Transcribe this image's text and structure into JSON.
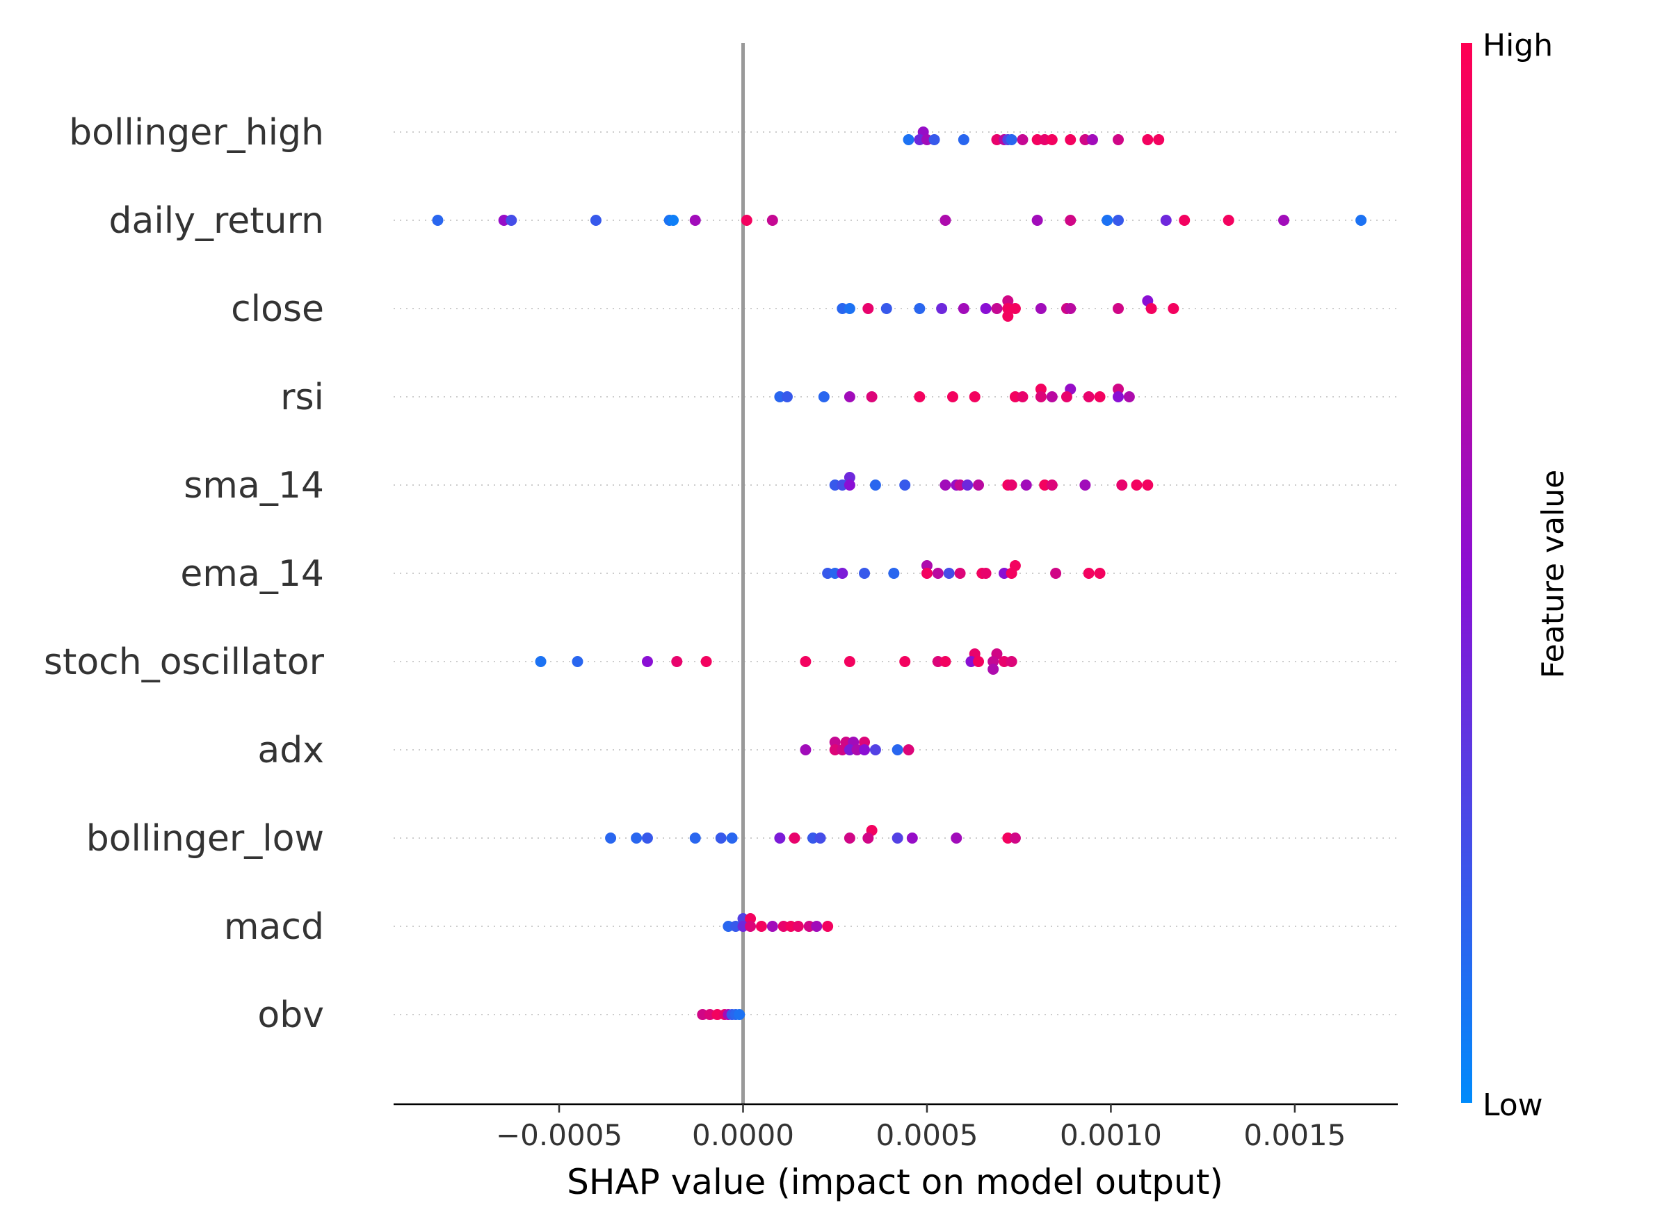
{
  "chart_data": {
    "type": "scatter",
    "subtype": "shap-beeswarm",
    "title": "",
    "xlabel": "SHAP value (impact on model output)",
    "ylabel": "",
    "xlim": [
      -0.00095,
      0.00178
    ],
    "xticks": [
      {
        "value": -0.0005,
        "label": "−0.0005"
      },
      {
        "value": 0.0,
        "label": "0.0000"
      },
      {
        "value": 0.0005,
        "label": "0.0005"
      },
      {
        "value": 0.001,
        "label": "0.0010"
      },
      {
        "value": 0.0015,
        "label": "0.0015"
      }
    ],
    "zero_line": 0.0,
    "grid": false,
    "colorbar": {
      "title": "Feature value",
      "high_label": "High",
      "low_label": "Low",
      "high_color": "#ff0052",
      "mid_color": "#8a0fd4",
      "low_color": "#008bfb"
    },
    "features": [
      {
        "name": "bollinger_high",
        "points": [
          [
            0.00049,
            0,
            0.55
          ],
          [
            0.00045,
            -1,
            0.1
          ],
          [
            0.00048,
            -1,
            0.4
          ],
          [
            0.0005,
            -1,
            0.6
          ],
          [
            0.00052,
            -1,
            0.2
          ],
          [
            0.0006,
            -1,
            0.15
          ],
          [
            0.00069,
            -1,
            0.9
          ],
          [
            0.00071,
            -1,
            0.7
          ],
          [
            0.00072,
            -1,
            0.3
          ],
          [
            0.00073,
            -1,
            0.15
          ],
          [
            0.00076,
            -1,
            0.75
          ],
          [
            0.0008,
            -1,
            0.95
          ],
          [
            0.00082,
            -1,
            0.9
          ],
          [
            0.00084,
            -1,
            0.95
          ],
          [
            0.00089,
            -1,
            0.95
          ],
          [
            0.00093,
            -1,
            0.8
          ],
          [
            0.00095,
            -1,
            0.6
          ],
          [
            0.00102,
            -1,
            0.8
          ],
          [
            0.0011,
            -1,
            0.95
          ],
          [
            0.00113,
            -1,
            0.95
          ]
        ]
      },
      {
        "name": "daily_return",
        "points": [
          [
            -0.00083,
            0,
            0.15
          ],
          [
            -0.00065,
            0,
            0.55
          ],
          [
            -0.00063,
            0,
            0.25
          ],
          [
            -0.0004,
            0,
            0.2
          ],
          [
            -0.0002,
            0,
            0.1
          ],
          [
            -0.00019,
            0,
            0.05
          ],
          [
            -0.00013,
            0,
            0.6
          ],
          [
            1e-05,
            0,
            0.95
          ],
          [
            8e-05,
            0,
            0.75
          ],
          [
            0.00055,
            0,
            0.65
          ],
          [
            0.0008,
            0,
            0.6
          ],
          [
            0.00089,
            0,
            0.8
          ],
          [
            0.00099,
            0,
            0.1
          ],
          [
            0.00102,
            0,
            0.2
          ],
          [
            0.00115,
            0,
            0.4
          ],
          [
            0.0012,
            0,
            0.95
          ],
          [
            0.00132,
            0,
            0.95
          ],
          [
            0.00147,
            0,
            0.6
          ],
          [
            0.00168,
            0,
            0.1
          ]
        ]
      },
      {
        "name": "close",
        "points": [
          [
            0.00072,
            1,
            0.8
          ],
          [
            0.0011,
            1,
            0.5
          ],
          [
            0.00027,
            0,
            0.15
          ],
          [
            0.00029,
            0,
            0.1
          ],
          [
            0.00034,
            0,
            0.9
          ],
          [
            0.00039,
            0,
            0.2
          ],
          [
            0.00048,
            0,
            0.15
          ],
          [
            0.00054,
            0,
            0.4
          ],
          [
            0.0006,
            0,
            0.6
          ],
          [
            0.00066,
            0,
            0.5
          ],
          [
            0.00069,
            0,
            0.75
          ],
          [
            0.00072,
            0,
            0.95
          ],
          [
            0.00074,
            0,
            0.95
          ],
          [
            0.00081,
            0,
            0.6
          ],
          [
            0.00088,
            0,
            0.8
          ],
          [
            0.00089,
            0,
            0.7
          ],
          [
            0.00102,
            0,
            0.8
          ],
          [
            0.00111,
            0,
            0.95
          ],
          [
            0.00117,
            0,
            0.95
          ],
          [
            0.00072,
            -1,
            0.95
          ]
        ]
      },
      {
        "name": "rsi",
        "points": [
          [
            0.00081,
            1,
            0.95
          ],
          [
            0.00089,
            1,
            0.55
          ],
          [
            0.00102,
            1,
            0.8
          ],
          [
            0.0001,
            0,
            0.15
          ],
          [
            0.00012,
            0,
            0.2
          ],
          [
            0.00022,
            0,
            0.15
          ],
          [
            0.00029,
            0,
            0.6
          ],
          [
            0.00035,
            0,
            0.85
          ],
          [
            0.00048,
            0,
            0.95
          ],
          [
            0.00057,
            0,
            0.95
          ],
          [
            0.00063,
            0,
            0.95
          ],
          [
            0.00074,
            0,
            0.95
          ],
          [
            0.00076,
            0,
            0.9
          ],
          [
            0.00081,
            0,
            0.85
          ],
          [
            0.00084,
            0,
            0.7
          ],
          [
            0.00088,
            0,
            0.9
          ],
          [
            0.00094,
            0,
            0.9
          ],
          [
            0.00097,
            0,
            0.95
          ],
          [
            0.00102,
            0,
            0.5
          ],
          [
            0.00105,
            0,
            0.65
          ]
        ]
      },
      {
        "name": "sma_14",
        "points": [
          [
            0.00029,
            1,
            0.4
          ],
          [
            0.00025,
            0,
            0.2
          ],
          [
            0.00027,
            0,
            0.25
          ],
          [
            0.00029,
            0,
            0.5
          ],
          [
            0.00036,
            0,
            0.15
          ],
          [
            0.00044,
            0,
            0.2
          ],
          [
            0.00055,
            0,
            0.6
          ],
          [
            0.00058,
            0,
            0.55
          ],
          [
            0.00059,
            0,
            0.75
          ],
          [
            0.00061,
            0,
            0.4
          ],
          [
            0.00064,
            0,
            0.7
          ],
          [
            0.00072,
            0,
            0.95
          ],
          [
            0.00073,
            0,
            0.9
          ],
          [
            0.00077,
            0,
            0.6
          ],
          [
            0.00082,
            0,
            0.95
          ],
          [
            0.00084,
            0,
            0.85
          ],
          [
            0.00093,
            0,
            0.6
          ],
          [
            0.00103,
            0,
            0.9
          ],
          [
            0.00107,
            0,
            0.95
          ],
          [
            0.0011,
            0,
            0.95
          ]
        ]
      },
      {
        "name": "ema_14",
        "points": [
          [
            0.0005,
            1,
            0.65
          ],
          [
            0.00074,
            1,
            0.95
          ],
          [
            0.00023,
            0,
            0.2
          ],
          [
            0.00025,
            0,
            0.15
          ],
          [
            0.00027,
            0,
            0.45
          ],
          [
            0.00033,
            0,
            0.2
          ],
          [
            0.00041,
            0,
            0.15
          ],
          [
            0.0005,
            0,
            0.95
          ],
          [
            0.00053,
            0,
            0.7
          ],
          [
            0.00056,
            0,
            0.25
          ],
          [
            0.00059,
            0,
            0.85
          ],
          [
            0.00065,
            0,
            0.95
          ],
          [
            0.00066,
            0,
            0.9
          ],
          [
            0.00071,
            0,
            0.5
          ],
          [
            0.00073,
            0,
            0.95
          ],
          [
            0.00085,
            0,
            0.8
          ],
          [
            0.00094,
            0,
            0.95
          ],
          [
            0.00097,
            0,
            0.95
          ]
        ]
      },
      {
        "name": "stoch_oscillator",
        "points": [
          [
            0.00063,
            1,
            0.9
          ],
          [
            0.00069,
            1,
            0.8
          ],
          [
            -0.00055,
            0,
            0.1
          ],
          [
            -0.00045,
            0,
            0.15
          ],
          [
            -0.00026,
            0,
            0.5
          ],
          [
            -0.00018,
            0,
            0.9
          ],
          [
            -0.0001,
            0,
            0.95
          ],
          [
            0.00017,
            0,
            0.95
          ],
          [
            0.00029,
            0,
            0.95
          ],
          [
            0.00044,
            0,
            0.95
          ],
          [
            0.00053,
            0,
            0.85
          ],
          [
            0.00055,
            0,
            0.95
          ],
          [
            0.00062,
            0,
            0.5
          ],
          [
            0.00064,
            0,
            0.95
          ],
          [
            0.00068,
            0,
            0.75
          ],
          [
            0.00071,
            0,
            0.9
          ],
          [
            0.00073,
            0,
            0.85
          ],
          [
            0.00068,
            -1,
            0.65
          ]
        ]
      },
      {
        "name": "adx",
        "points": [
          [
            0.00025,
            1,
            0.75
          ],
          [
            0.00028,
            1,
            0.8
          ],
          [
            0.0003,
            1,
            0.6
          ],
          [
            0.00033,
            1,
            0.85
          ],
          [
            0.00017,
            0,
            0.6
          ],
          [
            0.00025,
            0,
            0.85
          ],
          [
            0.00027,
            0,
            0.8
          ],
          [
            0.00029,
            0,
            0.45
          ],
          [
            0.00031,
            0,
            0.65
          ],
          [
            0.00033,
            0,
            0.5
          ],
          [
            0.00036,
            0,
            0.3
          ],
          [
            0.00042,
            0,
            0.15
          ],
          [
            0.00045,
            0,
            0.85
          ]
        ]
      },
      {
        "name": "bollinger_low",
        "points": [
          [
            0.00035,
            1,
            0.95
          ],
          [
            -0.00036,
            0,
            0.15
          ],
          [
            -0.00029,
            0,
            0.15
          ],
          [
            -0.00026,
            0,
            0.2
          ],
          [
            -0.00013,
            0,
            0.15
          ],
          [
            -6e-05,
            0,
            0.2
          ],
          [
            -3e-05,
            0,
            0.15
          ],
          [
            0.0001,
            0,
            0.45
          ],
          [
            0.00014,
            0,
            0.9
          ],
          [
            0.00019,
            0,
            0.2
          ],
          [
            0.00021,
            0,
            0.25
          ],
          [
            0.00029,
            0,
            0.8
          ],
          [
            0.00034,
            0,
            0.8
          ],
          [
            0.00042,
            0,
            0.3
          ],
          [
            0.00046,
            0,
            0.55
          ],
          [
            0.00058,
            0,
            0.6
          ],
          [
            0.00072,
            0,
            0.95
          ],
          [
            0.00074,
            0,
            0.8
          ]
        ]
      },
      {
        "name": "macd",
        "points": [
          [
            0.0,
            1,
            0.3
          ],
          [
            2e-05,
            1,
            0.95
          ],
          [
            -4e-05,
            0,
            0.15
          ],
          [
            -2e-05,
            0,
            0.2
          ],
          [
            0.0,
            0,
            0.4
          ],
          [
            2e-05,
            0,
            0.85
          ],
          [
            5e-05,
            0,
            0.95
          ],
          [
            8e-05,
            0,
            0.6
          ],
          [
            0.00011,
            0,
            0.9
          ],
          [
            0.00013,
            0,
            0.95
          ],
          [
            0.00015,
            0,
            0.9
          ],
          [
            0.00018,
            0,
            0.8
          ],
          [
            0.0002,
            0,
            0.6
          ],
          [
            0.00023,
            0,
            0.95
          ]
        ]
      },
      {
        "name": "obv",
        "points": [
          [
            -0.00011,
            0,
            0.8
          ],
          [
            -9e-05,
            0,
            0.85
          ],
          [
            -7e-05,
            0,
            0.95
          ],
          [
            -5e-05,
            0,
            0.9
          ],
          [
            -4e-05,
            0,
            0.6
          ],
          [
            -3e-05,
            0,
            0.2
          ],
          [
            -2e-05,
            0,
            0.15
          ],
          [
            -1e-05,
            0,
            0.1
          ]
        ]
      }
    ]
  }
}
